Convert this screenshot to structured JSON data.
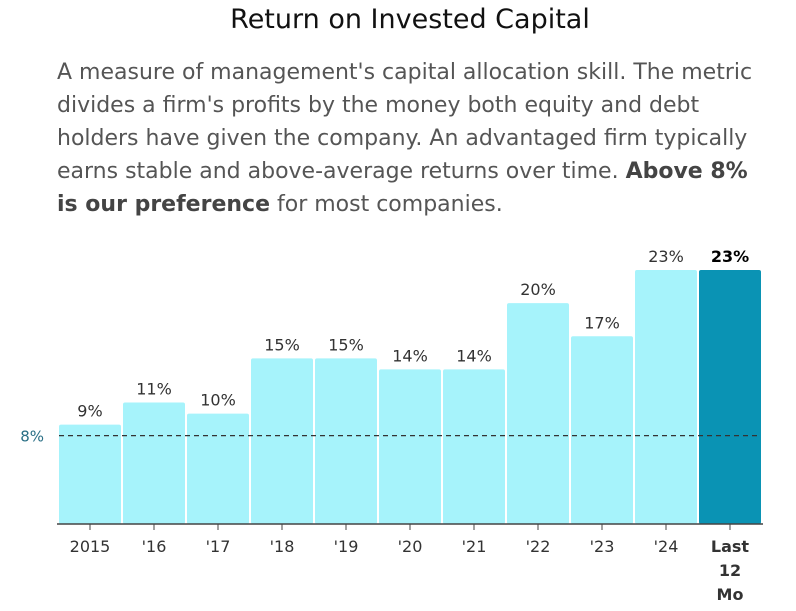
{
  "title": "Return on Invested Capital",
  "description": {
    "text": "A measure of management's capital allocation skill. The metric divides a firm's profits by the money both equity and debt holders have given the company. An advantaged firm typically earns stable and above-average returns over time.",
    "bold": "Above 8% is our preference",
    "tail": "for most companies."
  },
  "chart_data": {
    "type": "bar",
    "categories": [
      "2015",
      "'16",
      "'17",
      "'18",
      "'19",
      "'20",
      "'21",
      "'22",
      "'23",
      "'24",
      "Last 12 Mo"
    ],
    "values": [
      9,
      11,
      10,
      15,
      15,
      14,
      14,
      20,
      17,
      23,
      23
    ],
    "value_labels": [
      "9%",
      "11%",
      "10%",
      "15%",
      "15%",
      "14%",
      "14%",
      "20%",
      "17%",
      "23%",
      "23%"
    ],
    "ylim": [
      0,
      23
    ],
    "highlight_index": 10,
    "reference_line": {
      "value": 8,
      "label": "8%"
    },
    "colors": {
      "bar": "#a6f3fb",
      "highlight": "#0a93b4",
      "reference": "#333333",
      "reference_label": "#2a6f85",
      "axis": "#444444"
    },
    "grid": false,
    "legend": "none"
  }
}
